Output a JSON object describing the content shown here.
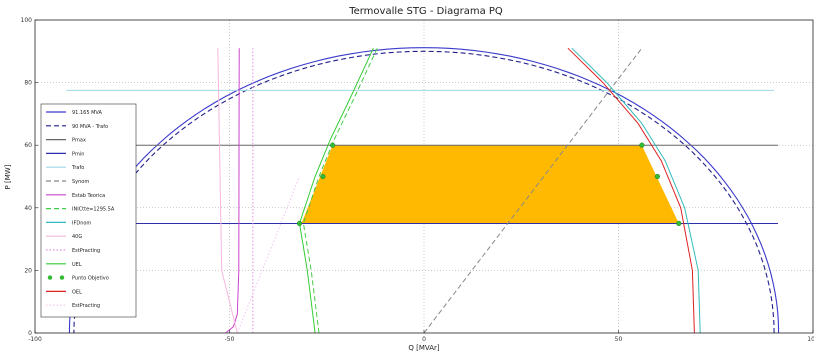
{
  "chart_data": {
    "type": "line",
    "title": "Termovalle STG - Diagrama PQ",
    "xlabel": "Q [MVAr]",
    "ylabel": "P [MW]",
    "xlim": [
      -100,
      100
    ],
    "ylim": [
      0,
      100
    ],
    "x_ticks": [
      "-100",
      "-50",
      "0",
      "50",
      "100"
    ],
    "y_ticks": [
      "0",
      "20",
      "40",
      "60",
      "80",
      "100"
    ],
    "grid": true,
    "legend_position": "left",
    "operating_region": {
      "color": "#FFB900",
      "p_min": 35,
      "p_max": 60,
      "q_left_at_pmin": -31.5,
      "q_left_at_pmax": -23.5,
      "q_right_at_pmax": 56,
      "q_right_at_pmin": 65.5
    },
    "series": [
      {
        "name": "91.165 MVA",
        "color": "#3a3acb",
        "style": "solid",
        "kind": "circle",
        "radius": 91.165
      },
      {
        "name": "90 MVA - Trafo",
        "color": "#20208c",
        "style": "dashed",
        "kind": "circle",
        "radius": 90
      },
      {
        "name": "Pmax",
        "color": "#666666",
        "style": "solid",
        "kind": "hline",
        "y": 60,
        "x": [
          -93,
          91
        ]
      },
      {
        "name": "Pmin",
        "color": "#2e2eaa",
        "style": "solid",
        "kind": "hline",
        "y": 35,
        "x": [
          -93,
          91
        ]
      },
      {
        "name": "Trafo",
        "color": "#9fd8e6",
        "style": "solid",
        "kind": "hline",
        "y": 77.5,
        "x": [
          -92,
          90
        ]
      },
      {
        "name": "Synom",
        "color": "#888888",
        "style": "dashed",
        "kind": "line",
        "points": [
          [
            0,
            0
          ],
          [
            56,
            91
          ]
        ]
      },
      {
        "name": "Estab Teorica",
        "color": "#cc44cc",
        "style": "solid",
        "kind": "curve",
        "points": [
          [
            -51,
            0
          ],
          [
            -49,
            2
          ],
          [
            -48,
            6
          ],
          [
            -47.6,
            20
          ],
          [
            -47.5,
            91
          ]
        ]
      },
      {
        "name": "INICtte=1295.5A",
        "color": "#44cc44",
        "style": "dashed",
        "kind": "curve",
        "points": [
          [
            -27,
            0
          ],
          [
            -29,
            20
          ],
          [
            -31,
            35
          ],
          [
            -27,
            50
          ],
          [
            -23,
            62
          ],
          [
            -18,
            75
          ],
          [
            -12,
            91
          ]
        ]
      },
      {
        "name": "IFDnom",
        "color": "#33bbbb",
        "style": "solid",
        "kind": "curve",
        "points": [
          [
            71,
            0
          ],
          [
            70.5,
            20
          ],
          [
            67,
            40
          ],
          [
            62,
            55
          ],
          [
            56,
            67
          ],
          [
            47,
            80
          ],
          [
            38,
            91
          ]
        ]
      },
      {
        "name": "40G",
        "color": "#f7b7e0",
        "style": "solid",
        "kind": "curve",
        "points": [
          [
            -48,
            0
          ],
          [
            -52,
            20
          ],
          [
            -53,
            91
          ]
        ]
      },
      {
        "name": "EstPracting",
        "color": "#e490e4",
        "style": "dotted",
        "kind": "vline",
        "x": -44,
        "y": [
          0,
          91
        ]
      },
      {
        "name": "UEL",
        "color": "#33cc33",
        "style": "solid",
        "kind": "curve",
        "points": [
          [
            -28,
            0
          ],
          [
            -30,
            20
          ],
          [
            -32,
            35
          ],
          [
            -28,
            50
          ],
          [
            -24,
            62
          ],
          [
            -19,
            75
          ],
          [
            -13,
            91
          ]
        ]
      },
      {
        "name": "Punto Objetivo",
        "color": "#33bb33",
        "style": "marker",
        "kind": "points",
        "points": [
          [
            -32,
            35
          ],
          [
            -26,
            50
          ],
          [
            -23.5,
            60
          ],
          [
            56,
            60
          ],
          [
            60,
            50
          ],
          [
            65.5,
            35
          ]
        ]
      },
      {
        "name": "OEL",
        "color": "#dd2222",
        "style": "solid",
        "kind": "curve",
        "points": [
          [
            69.5,
            0
          ],
          [
            69,
            20
          ],
          [
            66,
            40
          ],
          [
            61,
            55
          ],
          [
            55,
            67
          ],
          [
            46,
            80
          ],
          [
            37,
            91
          ]
        ]
      },
      {
        "name": "EstPracting",
        "color": "#f2c4ef",
        "style": "dotted",
        "kind": "line",
        "points": [
          [
            -48,
            0
          ],
          [
            -32,
            50
          ]
        ]
      }
    ]
  }
}
